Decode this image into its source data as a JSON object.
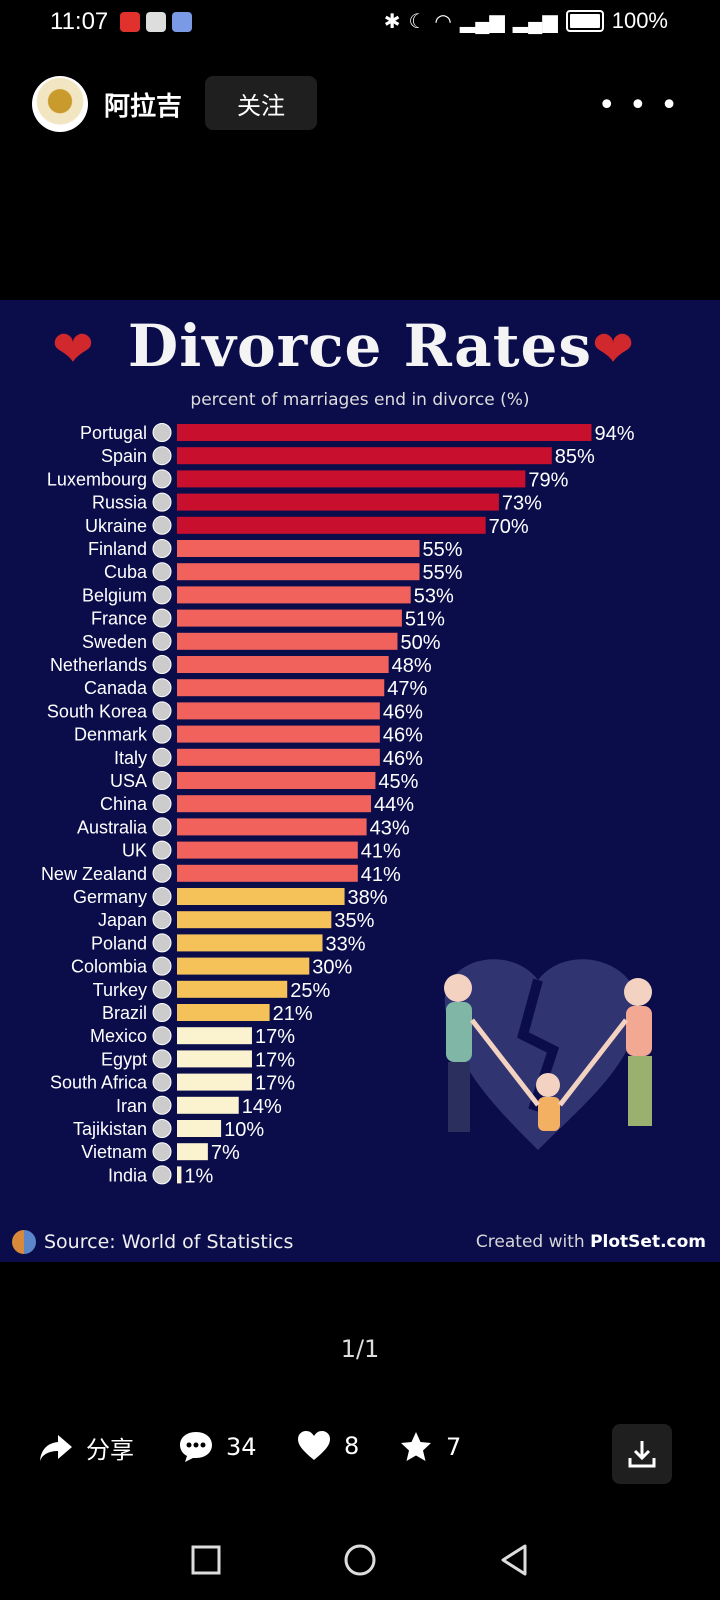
{
  "status": {
    "time": "11:07",
    "battery": "100%"
  },
  "header": {
    "username": "阿拉吉",
    "follow_label": "关注",
    "more_label": "• • •"
  },
  "chart_data": {
    "type": "bar",
    "title": "Divorce Rates",
    "subtitle": "percent of marriages end in divorce (%)",
    "categories": [
      "Portugal",
      "Spain",
      "Luxembourg",
      "Russia",
      "Ukraine",
      "Finland",
      "Cuba",
      "Belgium",
      "France",
      "Sweden",
      "Netherlands",
      "Canada",
      "South Korea",
      "Denmark",
      "Italy",
      "USA",
      "China",
      "Australia",
      "UK",
      "New Zealand",
      "Germany",
      "Japan",
      "Poland",
      "Colombia",
      "Turkey",
      "Brazil",
      "Mexico",
      "Egypt",
      "South Africa",
      "Iran",
      "Tajikistan",
      "Vietnam",
      "India"
    ],
    "values": [
      94,
      85,
      79,
      73,
      70,
      55,
      55,
      53,
      51,
      50,
      48,
      47,
      46,
      46,
      46,
      45,
      44,
      43,
      41,
      41,
      38,
      35,
      33,
      30,
      25,
      21,
      17,
      17,
      17,
      14,
      10,
      7,
      1
    ],
    "value_labels": [
      "94%",
      "85%",
      "79%",
      "73%",
      "70%",
      "55%",
      "55%",
      "53%",
      "51%",
      "50%",
      "48%",
      "47%",
      "46%",
      "46%",
      "46%",
      "45%",
      "44%",
      "43%",
      "41%",
      "41%",
      "38%",
      "35%",
      "33%",
      "30%",
      "25%",
      "21%",
      "17%",
      "17%",
      "17%",
      "14%",
      "10%",
      "7%",
      "1%"
    ],
    "xlim": [
      0,
      100
    ],
    "colors": {
      "dark_red": "#c8102e",
      "coral": "#f2625c",
      "yellow": "#f5c25a",
      "cream": "#fbf3cf"
    },
    "source": "Source: World of Statistics",
    "credit_prefix": "Created with",
    "credit_brand": "PlotSet.com"
  },
  "page_indicator": "1/1",
  "actions": {
    "share_label": "分享",
    "comments_count": "34",
    "likes_count": "8",
    "favorites_count": "7"
  },
  "icons": [
    "share-icon",
    "comment-icon",
    "heart-icon",
    "star-icon",
    "download-icon",
    "nav-recent-icon",
    "nav-home-icon",
    "nav-back-icon"
  ]
}
